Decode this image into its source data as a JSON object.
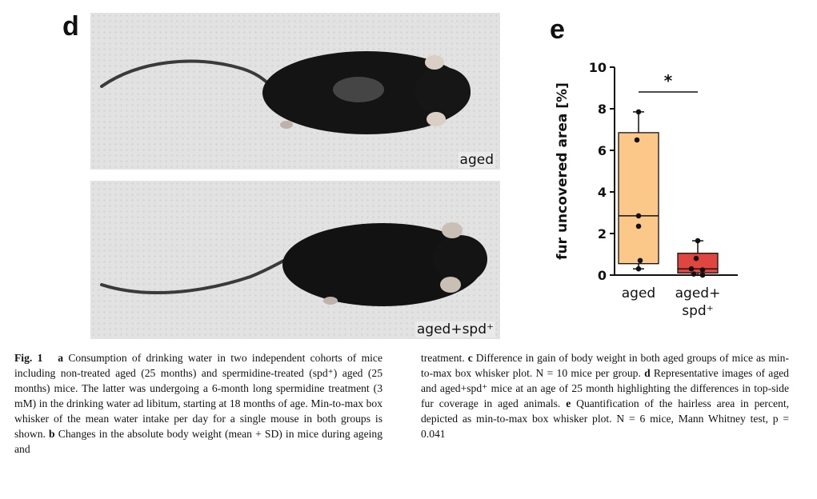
{
  "panel_d": {
    "letter": "d",
    "photos": [
      {
        "label": "aged"
      },
      {
        "label": "aged+spd⁺"
      }
    ]
  },
  "panel_e": {
    "letter": "e"
  },
  "chart_data": {
    "type": "box",
    "ylabel": "fur uncovered area [%]",
    "ylim": [
      0,
      10
    ],
    "yticks": [
      0,
      2,
      4,
      6,
      8,
      10
    ],
    "categories": [
      "aged",
      "aged+\nspd⁺"
    ],
    "colors": [
      "#fbc88a",
      "#e0463f"
    ],
    "boxes": [
      {
        "group": "aged",
        "min": 0.3,
        "q1": 0.55,
        "median": 2.85,
        "q3": 6.85,
        "max": 7.85,
        "points": [
          7.85,
          6.5,
          2.85,
          2.35,
          0.7,
          0.3
        ]
      },
      {
        "group": "aged+spd⁺",
        "min": 0.0,
        "q1": 0.1,
        "median": 0.3,
        "q3": 1.05,
        "max": 1.65,
        "points": [
          1.65,
          0.8,
          0.3,
          0.25,
          0.05,
          0.0
        ]
      }
    ],
    "significance": "*"
  },
  "caption": {
    "left": {
      "fig_label": "Fig. 1",
      "part_a_letter": "a",
      "part_a_text": "Consumption of drinking water in two independent cohorts of mice including non-treated aged (25 months) and spermidine-treated (spd⁺) aged (25 months) mice. The latter was undergoing a 6-month long spermidine treatment (3 mM) in the drinking water ad libitum, starting at 18 months of age. Min-to-max box whisker of the mean water intake per day for a single mouse in both groups is shown.",
      "part_b_letter": "b",
      "part_b_text": "Changes in the absolute body weight (mean + SD) in mice during ageing and"
    },
    "right": {
      "continued_text": "treatment.",
      "part_c_letter": "c",
      "part_c_text": "Difference in gain of body weight in both aged groups of mice as min-to-max box whisker plot.",
      "part_c_n": "N = 10 mice per group.",
      "part_d_letter": "d",
      "part_d_text": "Representative images of aged and aged+spd⁺ mice at an age of 25 month highlighting the differences in top-side fur coverage in aged animals.",
      "part_e_letter": "e",
      "part_e_text": "Quantification of the hairless area in percent, depicted as min-to-max box whisker plot.",
      "part_e_stats": "N = 6 mice, Mann Whitney test, p = 0.041"
    }
  }
}
